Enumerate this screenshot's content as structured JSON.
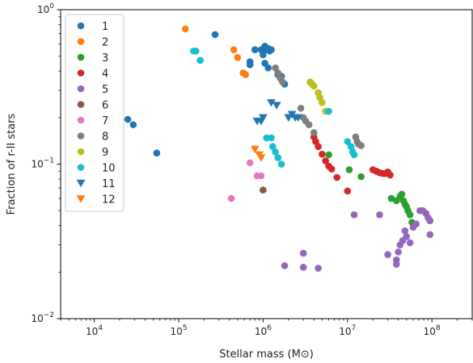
{
  "chart_data": {
    "type": "scatter",
    "title": "",
    "xlabel": "Stellar mass (M⊙)",
    "ylabel": "Fraction of r-II stars",
    "x_scale": "log",
    "y_scale": "log",
    "xlim": [
      4000,
      300000000
    ],
    "ylim": [
      0.01,
      1.0
    ],
    "x_ticks": [
      {
        "value": 10000,
        "base": "10",
        "exp": "4"
      },
      {
        "value": 100000,
        "base": "10",
        "exp": "5"
      },
      {
        "value": 1000000,
        "base": "10",
        "exp": "6"
      },
      {
        "value": 10000000,
        "base": "10",
        "exp": "7"
      },
      {
        "value": 100000000,
        "base": "10",
        "exp": "8"
      }
    ],
    "y_ticks": [
      {
        "value": 0.01,
        "base": "10",
        "exp": "−2"
      },
      {
        "value": 0.1,
        "base": "10",
        "exp": "−1"
      },
      {
        "value": 1.0,
        "base": "10",
        "exp": "0"
      }
    ],
    "grid": false,
    "legend_position": "top-left",
    "series": [
      {
        "name": "1",
        "color": "#1f77b4",
        "marker": "circle",
        "points": [
          [
            25000,
            0.195
          ],
          [
            29000,
            0.18
          ],
          [
            55000,
            0.118
          ],
          [
            270000,
            0.69
          ],
          [
            700000,
            0.44
          ],
          [
            700000,
            0.46
          ],
          [
            800000,
            0.55
          ],
          [
            950000,
            0.55
          ],
          [
            1000000,
            0.51
          ],
          [
            1050000,
            0.58
          ],
          [
            1100000,
            0.55
          ],
          [
            1150000,
            0.56
          ],
          [
            1200000,
            0.54
          ],
          [
            1250000,
            0.55
          ],
          [
            1050000,
            0.45
          ],
          [
            1150000,
            0.42
          ],
          [
            1500000,
            0.38
          ],
          [
            1650000,
            0.37
          ],
          [
            1800000,
            0.33
          ]
        ]
      },
      {
        "name": "2",
        "color": "#ff7f0e",
        "marker": "circle",
        "points": [
          [
            120000,
            0.75
          ],
          [
            450000,
            0.55
          ],
          [
            500000,
            0.49
          ],
          [
            580000,
            0.39
          ],
          [
            620000,
            0.38
          ]
        ]
      },
      {
        "name": "3",
        "color": "#2ca02c",
        "marker": "circle",
        "points": [
          [
            6000000,
            0.115
          ],
          [
            10500000,
            0.092
          ],
          [
            14500000,
            0.083
          ],
          [
            33000000,
            0.06
          ],
          [
            38000000,
            0.058
          ],
          [
            42000000,
            0.062
          ],
          [
            44000000,
            0.064
          ],
          [
            46000000,
            0.058
          ],
          [
            48000000,
            0.055
          ],
          [
            50000000,
            0.053
          ],
          [
            52000000,
            0.05
          ],
          [
            55000000,
            0.047
          ],
          [
            58000000,
            0.042
          ]
        ]
      },
      {
        "name": "4",
        "color": "#d62728",
        "marker": "circle",
        "points": [
          [
            4000000,
            0.15
          ],
          [
            4200000,
            0.14
          ],
          [
            4500000,
            0.13
          ],
          [
            5000000,
            0.116
          ],
          [
            5500000,
            0.105
          ],
          [
            6000000,
            0.097
          ],
          [
            6500000,
            0.093
          ],
          [
            7500000,
            0.082
          ],
          [
            10000000,
            0.067
          ],
          [
            20000000,
            0.092
          ],
          [
            22000000,
            0.09
          ],
          [
            24000000,
            0.088
          ],
          [
            26000000,
            0.087
          ],
          [
            28000000,
            0.087
          ],
          [
            30000000,
            0.089
          ],
          [
            32000000,
            0.085
          ]
        ]
      },
      {
        "name": "5",
        "color": "#9467bd",
        "marker": "circle",
        "points": [
          [
            1800000,
            0.022
          ],
          [
            3000000,
            0.0265
          ],
          [
            3000000,
            0.0215
          ],
          [
            4500000,
            0.0212
          ],
          [
            12000000,
            0.047
          ],
          [
            24000000,
            0.047
          ],
          [
            30000000,
            0.026
          ],
          [
            38000000,
            0.024
          ],
          [
            38000000,
            0.0225
          ],
          [
            40000000,
            0.027
          ],
          [
            42000000,
            0.03
          ],
          [
            45000000,
            0.032
          ],
          [
            48000000,
            0.037
          ],
          [
            50000000,
            0.034
          ],
          [
            55000000,
            0.031
          ],
          [
            60000000,
            0.039
          ],
          [
            65000000,
            0.041
          ],
          [
            72000000,
            0.05
          ],
          [
            78000000,
            0.05
          ],
          [
            85000000,
            0.048
          ],
          [
            90000000,
            0.045
          ],
          [
            95000000,
            0.043
          ],
          [
            95000000,
            0.035
          ]
        ]
      },
      {
        "name": "6",
        "color": "#8c564b",
        "marker": "circle",
        "points": [
          [
            1000000,
            0.068
          ]
        ]
      },
      {
        "name": "7",
        "color": "#e377c2",
        "marker": "circle",
        "points": [
          [
            420000,
            0.06
          ],
          [
            700000,
            0.102
          ],
          [
            850000,
            0.084
          ],
          [
            950000,
            0.084
          ]
        ]
      },
      {
        "name": "8",
        "color": "#7f7f7f",
        "marker": "circle",
        "points": [
          [
            1400000,
            0.42
          ],
          [
            1500000,
            0.39
          ],
          [
            1600000,
            0.36
          ],
          [
            1700000,
            0.34
          ],
          [
            2800000,
            0.23
          ],
          [
            3000000,
            0.2
          ],
          [
            3200000,
            0.19
          ],
          [
            3500000,
            0.18
          ],
          [
            4000000,
            0.16
          ],
          [
            12500000,
            0.15
          ],
          [
            13000000,
            0.14
          ],
          [
            13500000,
            0.135
          ],
          [
            14500000,
            0.132
          ]
        ]
      },
      {
        "name": "9",
        "color": "#bcbd22",
        "marker": "circle",
        "points": [
          [
            3600000,
            0.34
          ],
          [
            3800000,
            0.33
          ],
          [
            4000000,
            0.32
          ],
          [
            4500000,
            0.29
          ],
          [
            4700000,
            0.27
          ],
          [
            5000000,
            0.25
          ],
          [
            5500000,
            0.22
          ]
        ]
      },
      {
        "name": "10",
        "color": "#17becf",
        "marker": "circle",
        "points": [
          [
            150000,
            0.54
          ],
          [
            160000,
            0.54
          ],
          [
            180000,
            0.47
          ],
          [
            1100000,
            0.148
          ],
          [
            1250000,
            0.148
          ],
          [
            1300000,
            0.13
          ],
          [
            1400000,
            0.12
          ],
          [
            1500000,
            0.11
          ],
          [
            1650000,
            0.1
          ],
          [
            6000000,
            0.22
          ],
          [
            10000000,
            0.14
          ],
          [
            11000000,
            0.13
          ],
          [
            11500000,
            0.12
          ],
          [
            12000000,
            0.115
          ]
        ]
      },
      {
        "name": "11",
        "color": "#1f77b4",
        "marker": "triangle-down",
        "points": [
          [
            850000,
            0.19
          ],
          [
            950000,
            0.19
          ],
          [
            1000000,
            0.2
          ],
          [
            1250000,
            0.25
          ],
          [
            1450000,
            0.24
          ],
          [
            2000000,
            0.2
          ],
          [
            2200000,
            0.21
          ],
          [
            2400000,
            0.2
          ],
          [
            2600000,
            0.2
          ]
        ]
      },
      {
        "name": "12",
        "color": "#ff7f0e",
        "marker": "triangle-down",
        "points": [
          [
            800000,
            0.125
          ],
          [
            900000,
            0.115
          ],
          [
            950000,
            0.11
          ]
        ]
      }
    ]
  }
}
